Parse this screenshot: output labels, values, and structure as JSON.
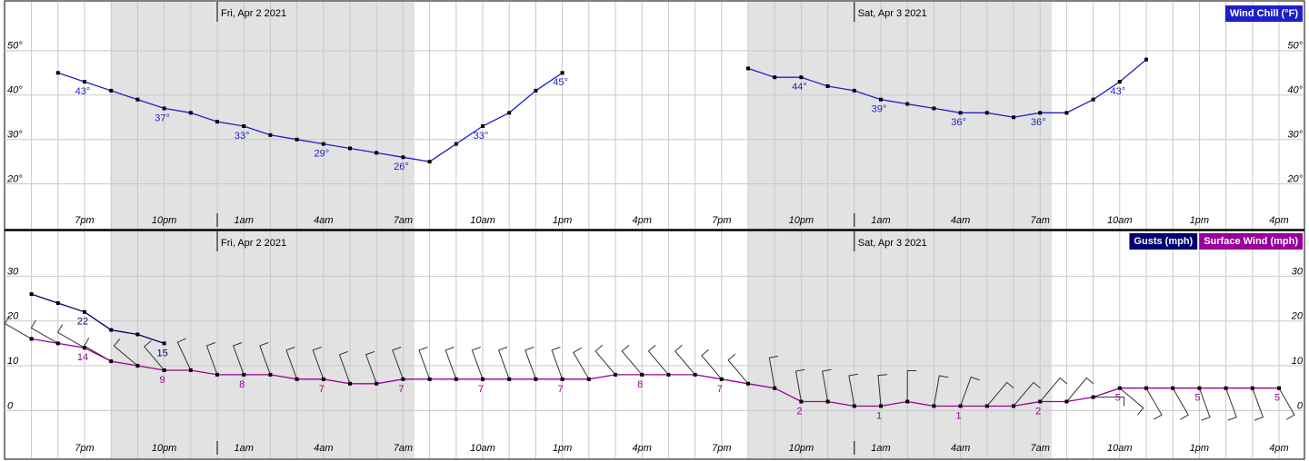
{
  "chart_data": [
    {
      "type": "line",
      "dates": [
        "Fri, Apr 2 2021",
        "Sat, Apr 3 2021"
      ],
      "categories": [
        null,
        null,
        null,
        "7pm",
        null,
        null,
        "10pm",
        null,
        null,
        "1am",
        null,
        null,
        "4am",
        null,
        null,
        "7am",
        null,
        null,
        "10am",
        null,
        null,
        "1pm",
        null,
        null,
        "4pm",
        null,
        null,
        "7pm",
        null,
        null,
        "10pm",
        null,
        null,
        "1am",
        null,
        null,
        "4am",
        null,
        null,
        "7am",
        null,
        null,
        "10am",
        null,
        null,
        "1pm",
        null,
        null,
        "4pm"
      ],
      "ylim": [
        14,
        61
      ],
      "yticks": [
        {
          "value": 20,
          "label": "20°"
        },
        {
          "value": 30,
          "label": "30°"
        },
        {
          "value": 40,
          "label": "40°"
        },
        {
          "value": 50,
          "label": "50°"
        }
      ],
      "grid": true,
      "series": [
        {
          "name": "Wind Chill (°F)",
          "color": "#1f1fc8",
          "values": [
            null,
            null,
            45,
            43,
            41,
            39,
            37,
            36,
            34,
            33,
            31,
            30,
            29,
            28,
            27,
            26,
            25,
            29,
            33,
            36,
            41,
            45,
            null,
            null,
            null,
            null,
            null,
            null,
            46,
            44,
            44,
            42,
            41,
            39,
            38,
            37,
            36,
            36,
            35,
            36,
            36,
            39,
            43,
            48,
            null,
            null,
            null,
            null,
            null
          ],
          "value_labels": [
            null,
            null,
            null,
            "43°",
            null,
            null,
            "37°",
            null,
            null,
            "33°",
            null,
            null,
            "29°",
            null,
            null,
            "26°",
            null,
            null,
            "33°",
            null,
            null,
            "45°",
            null,
            null,
            null,
            null,
            null,
            null,
            null,
            null,
            "44°",
            null,
            null,
            "39°",
            null,
            null,
            "36°",
            null,
            null,
            "36°",
            null,
            null,
            "43°",
            null,
            null,
            null,
            null,
            null,
            null
          ]
        }
      ]
    },
    {
      "type": "line",
      "dates": [
        "Fri, Apr 2 2021",
        "Sat, Apr 3 2021"
      ],
      "categories": [
        null,
        null,
        null,
        "7pm",
        null,
        null,
        "10pm",
        null,
        null,
        "1am",
        null,
        null,
        "4am",
        null,
        null,
        "7am",
        null,
        null,
        "10am",
        null,
        null,
        "1pm",
        null,
        null,
        "4pm",
        null,
        null,
        "7pm",
        null,
        null,
        "10pm",
        null,
        null,
        "1am",
        null,
        null,
        "4am",
        null,
        null,
        "7am",
        null,
        null,
        "10am",
        null,
        null,
        "1pm",
        null,
        null,
        "4pm"
      ],
      "ylim": [
        -6,
        40
      ],
      "yticks": [
        0,
        10,
        20,
        30
      ],
      "grid": true,
      "series": [
        {
          "name": "Gusts (mph)",
          "color": "#000070",
          "values": [
            null,
            26,
            24,
            22,
            18,
            17,
            15,
            null,
            null,
            null,
            null,
            null,
            null,
            null,
            null,
            null,
            null,
            null,
            null,
            null,
            null,
            null,
            null,
            null,
            null,
            null,
            null,
            null,
            null,
            null,
            null,
            null,
            null,
            null,
            null,
            null,
            null,
            null,
            null,
            null,
            null,
            null,
            null,
            null,
            null,
            null,
            null,
            null,
            null
          ]
        },
        {
          "name": "Surface Wind (mph)",
          "color": "#990099",
          "values": [
            null,
            16,
            15,
            14,
            11,
            10,
            9,
            9,
            8,
            8,
            8,
            7,
            7,
            6,
            6,
            7,
            7,
            7,
            7,
            7,
            7,
            7,
            7,
            8,
            8,
            8,
            8,
            7,
            6,
            5,
            2,
            2,
            1,
            1,
            2,
            1,
            1,
            1,
            1,
            2,
            2,
            3,
            5,
            5,
            5,
            5,
            5,
            5,
            5
          ]
        }
      ],
      "wind_direction": [
        null,
        300,
        300,
        300,
        300,
        310,
        320,
        335,
        340,
        340,
        340,
        340,
        340,
        340,
        340,
        340,
        340,
        340,
        340,
        340,
        340,
        340,
        330,
        320,
        320,
        320,
        320,
        320,
        320,
        350,
        350,
        350,
        350,
        355,
        0,
        10,
        20,
        40,
        40,
        40,
        40,
        90,
        130,
        150,
        150,
        160,
        160,
        160,
        150
      ]
    }
  ]
}
